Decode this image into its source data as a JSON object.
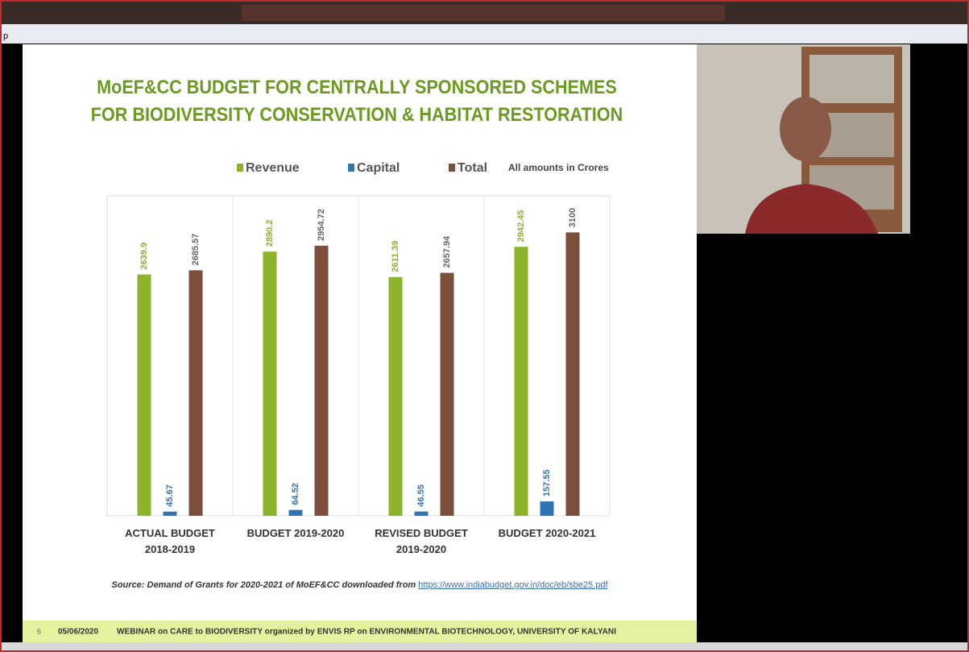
{
  "toolbar_text": "p",
  "chart_data": {
    "type": "bar",
    "title": "MoEF&CC BUDGET FOR CENTRALLY SPONSORED SCHEMES\nFOR BIODIVERSITY CONSERVATION & HABITAT RESTORATION",
    "note": "All amounts in Crores",
    "categories": [
      "ACTUAL BUDGET\n2018-2019",
      "BUDGET 2019-2020",
      "REVISED BUDGET\n2019-2020",
      "BUDGET 2020-2021"
    ],
    "series": [
      {
        "name": "Revenue",
        "color": "#8db32a",
        "values": [
          2639.9,
          2890.2,
          2611.39,
          2942.45
        ]
      },
      {
        "name": "Capital",
        "color": "#2e75b6",
        "values": [
          45.67,
          64.52,
          46.55,
          157.55
        ]
      },
      {
        "name": "Total",
        "color": "#7b4f3a",
        "values": [
          2685.57,
          2954.72,
          2657.94,
          3100
        ]
      }
    ],
    "ylim": [
      0,
      3500
    ]
  },
  "source": {
    "text": "Source: Demand of Grants for 2020-2021 of MoEF&CC downloaded from",
    "link": "https://www.indiabudget.gov.in/doc/eb/sbe25.pdf"
  },
  "slide_footer": {
    "page": "6",
    "date": "05/06/2020",
    "text": "WEBINAR on CARE to BIODIVERSITY organized by ENVIS RP on ENVIRONMENTAL BIOTECHNOLOGY, UNIVERSITY OF KALYANI"
  }
}
